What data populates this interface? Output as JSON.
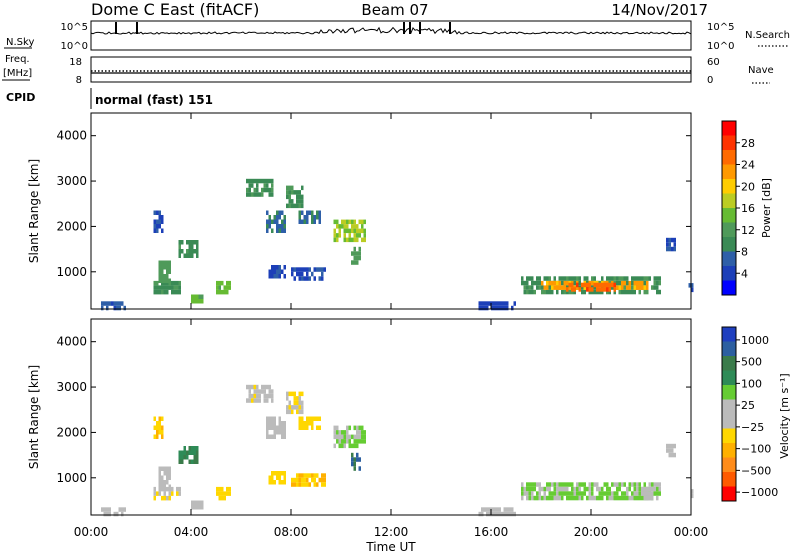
{
  "header": {
    "station": "Dome C East (fitACF)",
    "beam": "Beam 07",
    "date": "14/Nov/2017"
  },
  "panels": {
    "nsky": {
      "label": "N.Sky",
      "ticks": [
        "10^5",
        "10^0"
      ],
      "right_label": "N.Search",
      "right_ticks": [
        "10^5",
        "10^0"
      ]
    },
    "freq": {
      "label_top": "Freq.",
      "label_unit": "[MHz]",
      "ticks": [
        "18",
        "8"
      ],
      "right_label": "Nave",
      "right_ticks": [
        "60",
        "0"
      ]
    },
    "cpid": {
      "label": "CPID",
      "text": "normal (fast) 151"
    }
  },
  "colors": {
    "power_scale": [
      "#0000ff",
      "#1c3fb8",
      "#2e5fa8",
      "#3a8a55",
      "#4f9a5a",
      "#66bb33",
      "#bbcc22",
      "#ffcc00",
      "#ff9900",
      "#ff6a00",
      "#ff3300",
      "#ff0000"
    ],
    "velocity_scale": [
      "#ff0000",
      "#ff5a00",
      "#ff8c1a",
      "#ffb000",
      "#ffd700",
      "#bbbbbb",
      "#bbbbbb",
      "#66cc33",
      "#2e8b57",
      "#3a7b4a",
      "#2c5fa0",
      "#1f3fbf"
    ]
  },
  "chart_data": [
    {
      "type": "heatmap",
      "title": "",
      "xlabel": "",
      "ylabel": "Slant Range [km]",
      "xlim": [
        "00:00",
        "24:00"
      ],
      "ylim": [
        180,
        4500
      ],
      "x_ticks": [
        "00:00",
        "04:00",
        "08:00",
        "12:00",
        "16:00",
        "20:00",
        "00:00"
      ],
      "y_ticks": [
        "1000",
        "2000",
        "3000",
        "4000"
      ],
      "colorbar": {
        "label": "Power [dB]",
        "ticks": [
          "4",
          "8",
          "12",
          "16",
          "20",
          "24",
          "28"
        ],
        "range": [
          0,
          32
        ]
      },
      "regions": [
        {
          "t0": 0.4,
          "t1": 1.4,
          "r0": 200,
          "r1": 350,
          "value": 6
        },
        {
          "t0": 2.5,
          "t1": 3.6,
          "r0": 550,
          "r1": 800,
          "value": 10
        },
        {
          "t0": 2.7,
          "t1": 3.2,
          "r0": 800,
          "r1": 1250,
          "value": 12
        },
        {
          "t0": 3.5,
          "t1": 4.3,
          "r0": 1350,
          "r1": 1700,
          "value": 10
        },
        {
          "t0": 5.0,
          "t1": 5.6,
          "r0": 550,
          "r1": 800,
          "value": 14
        },
        {
          "t0": 2.5,
          "t1": 2.9,
          "r0": 1900,
          "r1": 2350,
          "value": 5
        },
        {
          "t0": 6.2,
          "t1": 7.3,
          "r0": 2750,
          "r1": 3050,
          "value": 10
        },
        {
          "t0": 7.0,
          "t1": 7.8,
          "r0": 1950,
          "r1": 2350,
          "value": 8
        },
        {
          "t0": 7.8,
          "t1": 8.5,
          "r0": 2450,
          "r1": 2900,
          "value": 10
        },
        {
          "t0": 8.3,
          "t1": 9.2,
          "r0": 2100,
          "r1": 2350,
          "value": 8
        },
        {
          "t0": 9.7,
          "t1": 11.0,
          "r0": 1750,
          "r1": 2150,
          "value": 16
        },
        {
          "t0": 10.4,
          "t1": 10.8,
          "r0": 1250,
          "r1": 1550,
          "value": 12
        },
        {
          "t0": 7.1,
          "t1": 7.8,
          "r0": 950,
          "r1": 1150,
          "value": 5
        },
        {
          "t0": 8.0,
          "t1": 9.4,
          "r0": 900,
          "r1": 1100,
          "value": 5
        },
        {
          "t0": 17.2,
          "t1": 22.8,
          "r0": 600,
          "r1": 900,
          "value": 10
        },
        {
          "t0": 18.0,
          "t1": 22.3,
          "r0": 620,
          "r1": 800,
          "value": 22
        },
        {
          "t0": 19.0,
          "t1": 21.0,
          "r0": 650,
          "r1": 760,
          "value": 26
        },
        {
          "t0": 23.0,
          "t1": 23.4,
          "r0": 1550,
          "r1": 1750,
          "value": 5
        },
        {
          "t0": 23.9,
          "t1": 24.0,
          "r0": 600,
          "r1": 750,
          "value": 5
        },
        {
          "t0": 15.5,
          "t1": 17.0,
          "r0": 200,
          "r1": 350,
          "value": 4
        },
        {
          "t0": 4.0,
          "t1": 4.5,
          "r0": 350,
          "r1": 500,
          "value": 14
        }
      ]
    },
    {
      "type": "heatmap",
      "title": "",
      "xlabel": "Time UT",
      "ylabel": "Slant Range [km]",
      "xlim": [
        "00:00",
        "24:00"
      ],
      "ylim": [
        180,
        4500
      ],
      "x_ticks": [
        "00:00",
        "04:00",
        "08:00",
        "12:00",
        "16:00",
        "20:00",
        "00:00"
      ],
      "y_ticks": [
        "1000",
        "2000",
        "3000",
        "4000"
      ],
      "colorbar": {
        "label": "Velocity [m s⁻¹]",
        "ticks": [
          "1000",
          "500",
          "100",
          "25",
          "−25",
          "−100",
          "−500",
          "−1000"
        ],
        "range": [
          -1200,
          1200
        ]
      },
      "regions": [
        {
          "t0": 0.4,
          "t1": 1.4,
          "r0": 200,
          "r1": 350,
          "value": 40
        },
        {
          "t0": 2.5,
          "t1": 3.6,
          "r0": 550,
          "r1": 800,
          "value": -150
        },
        {
          "t0": 2.7,
          "t1": 3.2,
          "r0": 800,
          "r1": 1250,
          "value": -80
        },
        {
          "t0": 3.5,
          "t1": 4.3,
          "r0": 1350,
          "r1": 1700,
          "value": 600
        },
        {
          "t0": 5.0,
          "t1": 5.6,
          "r0": 550,
          "r1": 800,
          "value": -300
        },
        {
          "t0": 2.5,
          "t1": 2.9,
          "r0": 1900,
          "r1": 2350,
          "value": -400
        },
        {
          "t0": 6.2,
          "t1": 7.3,
          "r0": 2750,
          "r1": 3050,
          "value": -120
        },
        {
          "t0": 7.0,
          "t1": 7.8,
          "r0": 1950,
          "r1": 2350,
          "value": 0
        },
        {
          "t0": 7.8,
          "t1": 8.5,
          "r0": 2450,
          "r1": 2900,
          "value": -200
        },
        {
          "t0": 8.3,
          "t1": 9.2,
          "r0": 2100,
          "r1": 2350,
          "value": -300
        },
        {
          "t0": 9.7,
          "t1": 11.0,
          "r0": 1750,
          "r1": 2150,
          "value": 200
        },
        {
          "t0": 10.4,
          "t1": 10.8,
          "r0": 1250,
          "r1": 1550,
          "value": 800
        },
        {
          "t0": 7.1,
          "t1": 7.8,
          "r0": 950,
          "r1": 1150,
          "value": -300
        },
        {
          "t0": 8.0,
          "t1": 9.4,
          "r0": 900,
          "r1": 1100,
          "value": -350
        },
        {
          "t0": 17.2,
          "t1": 22.8,
          "r0": 600,
          "r1": 900,
          "value": 220
        },
        {
          "t0": 22.0,
          "t1": 22.5,
          "r0": 600,
          "r1": 800,
          "value": 90
        },
        {
          "t0": 23.0,
          "t1": 23.4,
          "r0": 1550,
          "r1": 1750,
          "value": 90
        },
        {
          "t0": 23.9,
          "t1": 24.0,
          "r0": 600,
          "r1": 750,
          "value": 90
        },
        {
          "t0": 15.5,
          "t1": 17.0,
          "r0": 200,
          "r1": 350,
          "value": 40
        },
        {
          "t0": 4.0,
          "t1": 4.5,
          "r0": 350,
          "r1": 500,
          "value": 40
        }
      ]
    }
  ]
}
